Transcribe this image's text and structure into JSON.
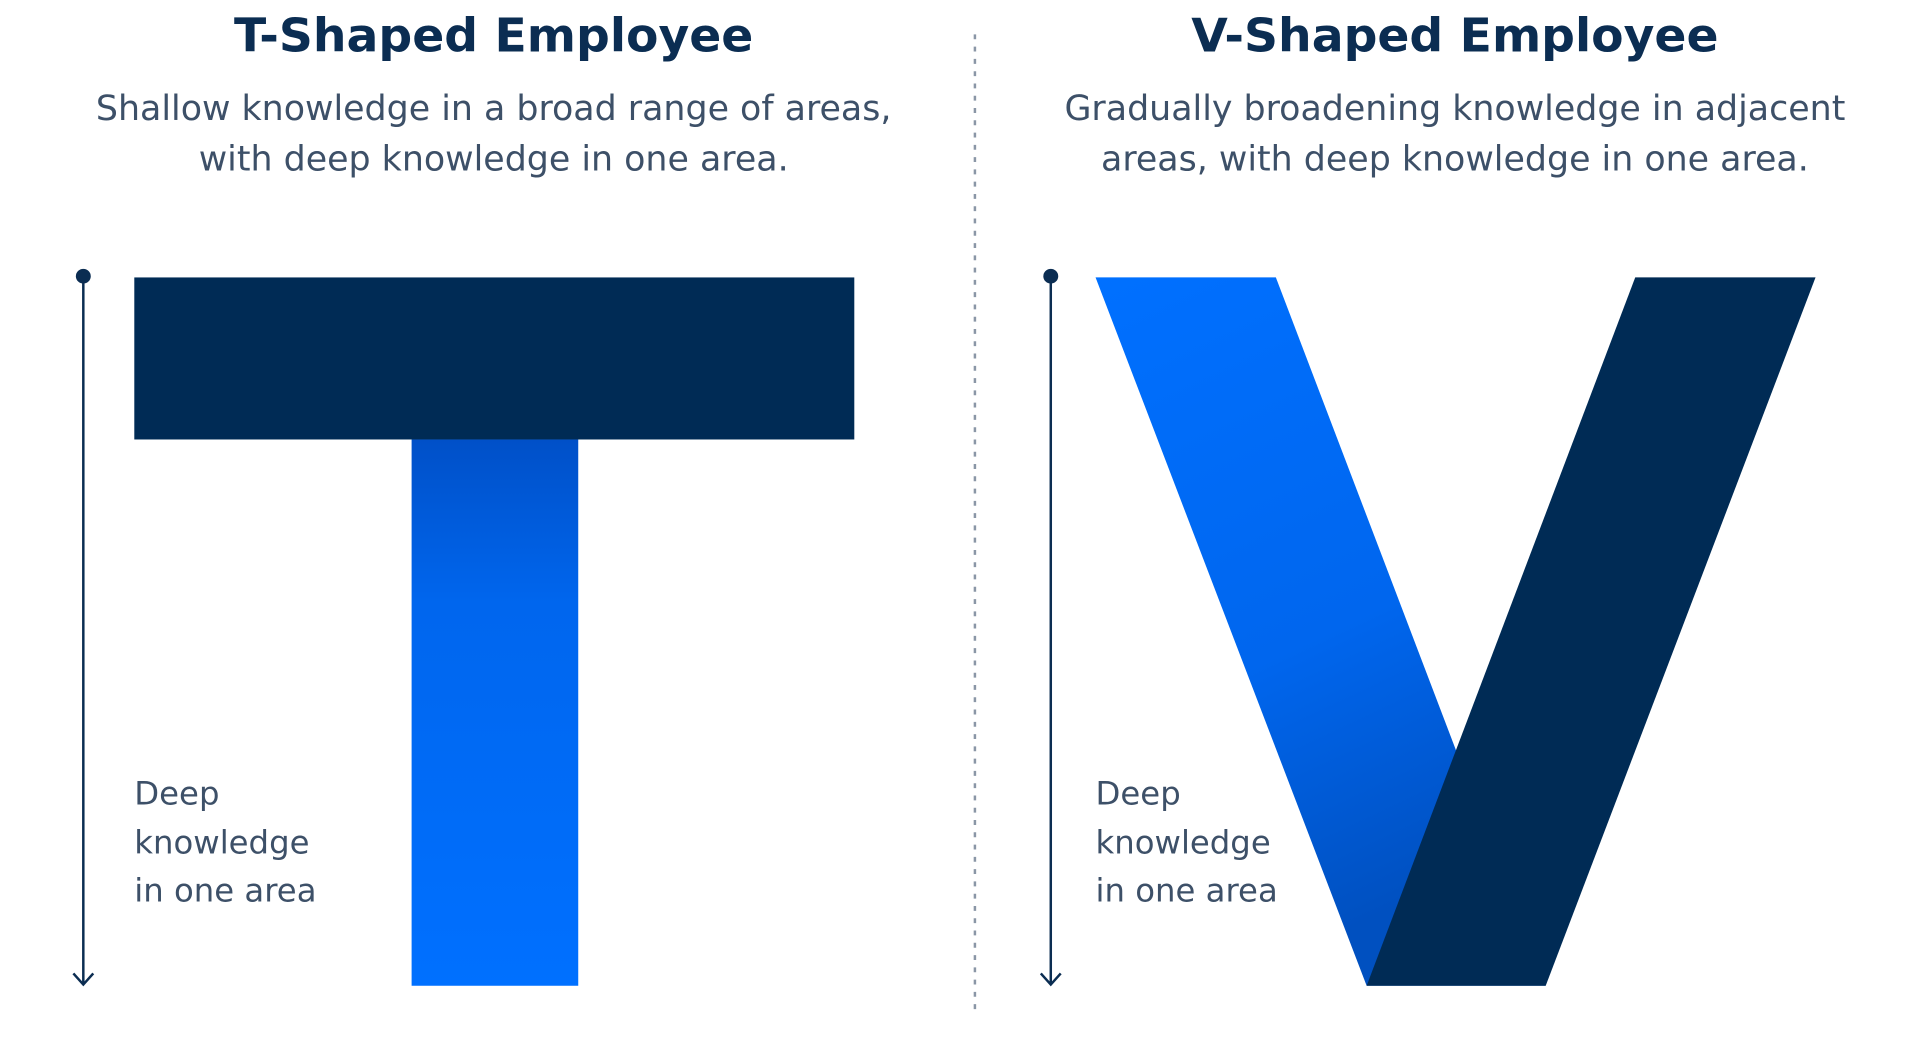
{
  "left": {
    "title": "T-Shaped Employee",
    "description": [
      "Shallow knowledge in a broad range of areas,",
      "with deep knowledge in one area."
    ],
    "axis_label": [
      "Deep",
      "knowledge",
      "in one area"
    ]
  },
  "right": {
    "title": "V-Shaped Employee",
    "description": [
      "Gradually broadening knowledge in adjacent",
      "areas, with deep knowledge in one area."
    ],
    "axis_label": [
      "Deep",
      "knowledge",
      "in one area"
    ]
  }
}
